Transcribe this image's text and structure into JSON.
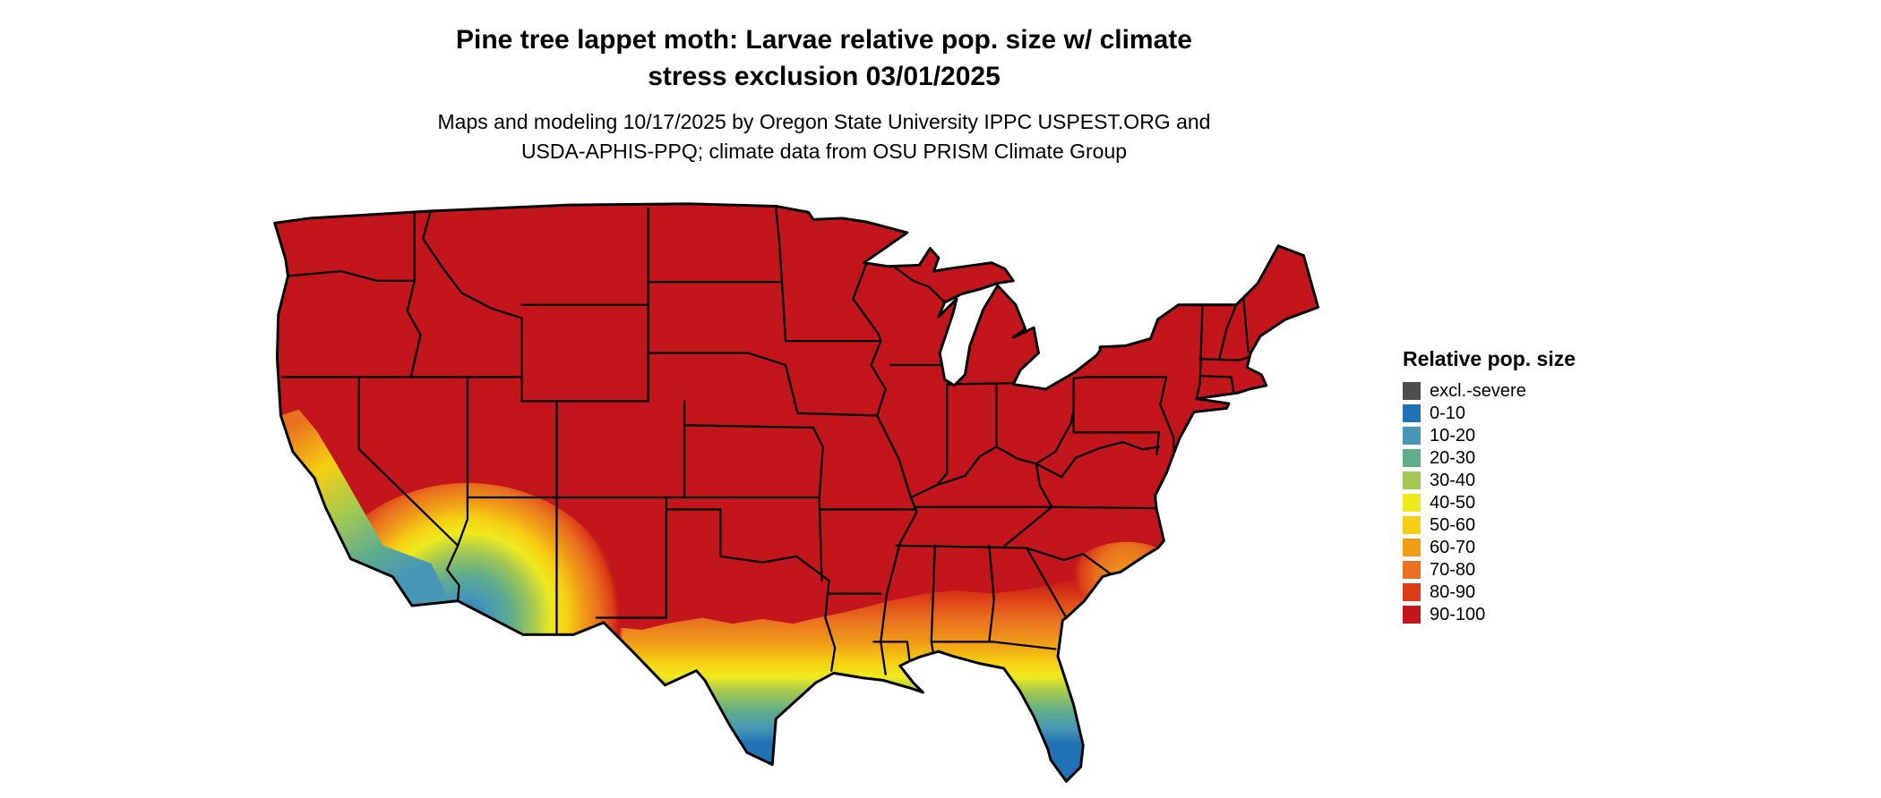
{
  "title": {
    "line1": "Pine tree lappet moth: Larvae relative pop. size w/ climate",
    "line2": "stress exclusion 03/01/2025"
  },
  "subtitle": {
    "line1": "Maps and modeling 10/17/2025 by Oregon State University IPPC USPEST.ORG and",
    "line2": "USDA-APHIS-PPQ; climate data from OSU PRISM Climate Group"
  },
  "legend": {
    "title": "Relative pop. size",
    "items": [
      {
        "label": "excl.-severe",
        "color": "#4d4d4d"
      },
      {
        "label": "0-10",
        "color": "#2171b5"
      },
      {
        "label": "10-20",
        "color": "#4898b5"
      },
      {
        "label": "20-30",
        "color": "#5fad8c"
      },
      {
        "label": "30-40",
        "color": "#a3c852"
      },
      {
        "label": "40-50",
        "color": "#eeea1f"
      },
      {
        "label": "50-60",
        "color": "#f6cf13"
      },
      {
        "label": "60-70",
        "color": "#f09c17"
      },
      {
        "label": "70-80",
        "color": "#e9711f"
      },
      {
        "label": "80-90",
        "color": "#dc3d16"
      },
      {
        "label": "90-100",
        "color": "#c2151c"
      }
    ]
  },
  "map": {
    "base_color": "#c2151c",
    "border_color": "#000000",
    "background_color": "#ffffff"
  }
}
